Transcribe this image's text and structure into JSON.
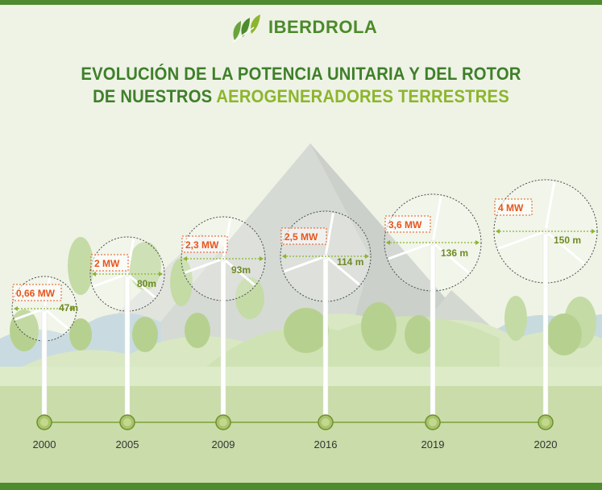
{
  "brand": {
    "name": "IBERDROLA"
  },
  "title": {
    "line1": "EVOLUCIÓN DE LA POTENCIA UNITARIA Y DEL ROTOR",
    "line2_start": "DE NUESTROS ",
    "line2_highlight": "AEROGENERADORES TERRESTRES"
  },
  "turbines": [
    {
      "year": "2000",
      "power": "0,66 MW",
      "rotor": "47m"
    },
    {
      "year": "2005",
      "power": "2 MW",
      "rotor": "80m"
    },
    {
      "year": "2009",
      "power": "2,3 MW",
      "rotor": "93m"
    },
    {
      "year": "2016",
      "power": "2,5 MW",
      "rotor": "114 m"
    },
    {
      "year": "2019",
      "power": "3,6 MW",
      "rotor": "136 m"
    },
    {
      "year": "2020",
      "power": "4 MW",
      "rotor": "150 m"
    }
  ],
  "colors": {
    "brand_green": "#4d8b2e",
    "accent_green": "#8db52c",
    "power_orange": "#e8551c",
    "background": "#eef3e6"
  }
}
